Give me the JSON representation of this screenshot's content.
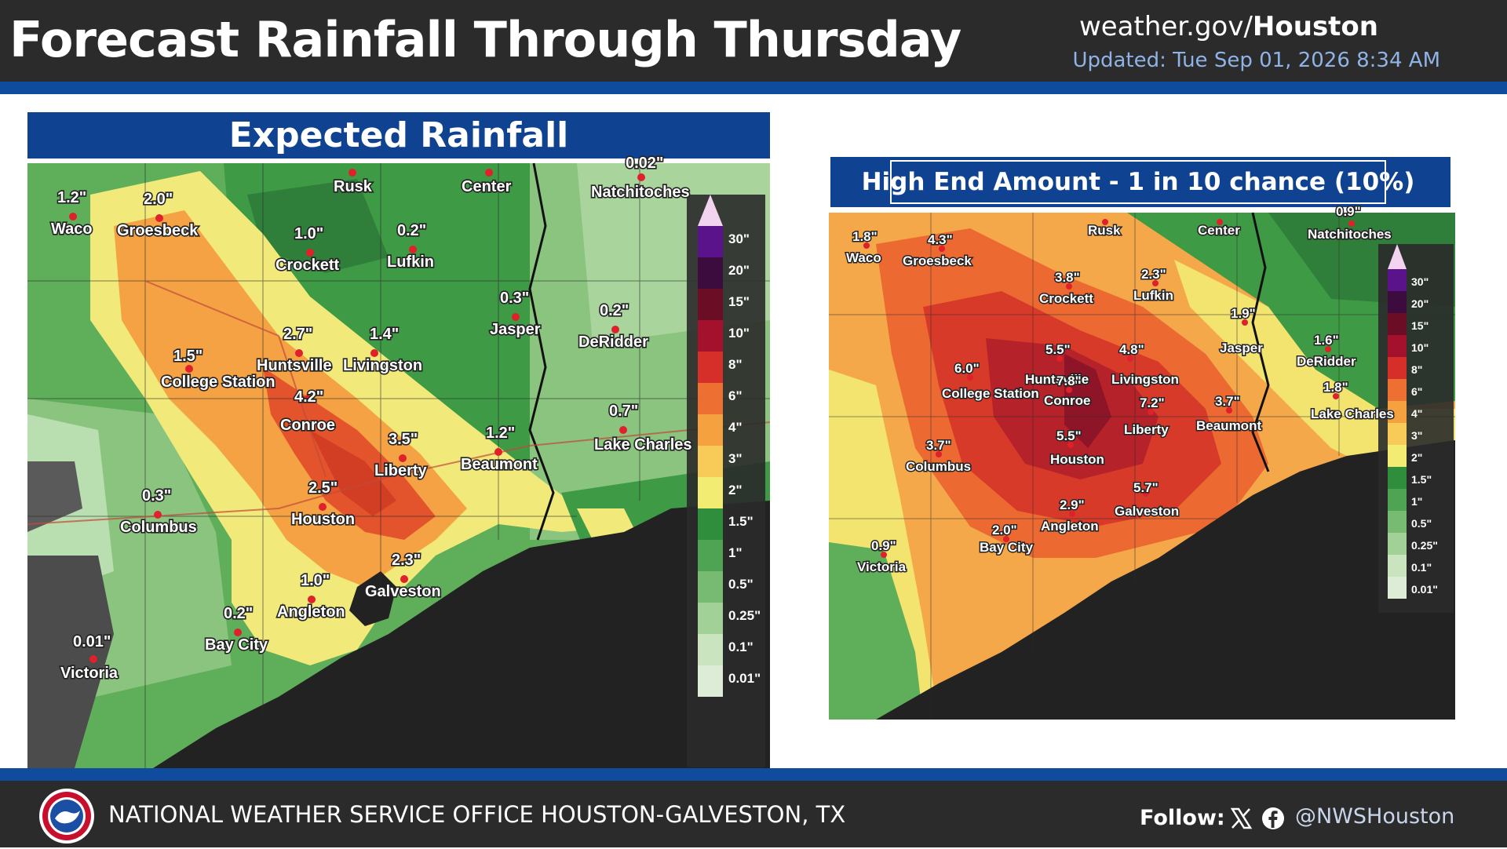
{
  "header": {
    "title": "Forecast Rainfall Through Thursday",
    "site_prefix": "weather.gov/",
    "site_office": "Houston",
    "updated": "Updated: Tue Sep 01, 2026 8:34 AM"
  },
  "left_panel": {
    "title": "Expected Rainfall",
    "legend": [
      "30\"",
      "20\"",
      "15\"",
      "10\"",
      "8\"",
      "6\"",
      "4\"",
      "3\"",
      "2\"",
      "1.5\"",
      "1\"",
      "0.5\"",
      "0.25\"",
      "0.1\"",
      "0.01\""
    ],
    "cities": [
      {
        "name": "Waco",
        "amount": "1.2\""
      },
      {
        "name": "Groesbeck",
        "amount": "2.0\""
      },
      {
        "name": "Rusk",
        "amount": ""
      },
      {
        "name": "Center",
        "amount": ""
      },
      {
        "name": "Natchitoches",
        "amount": "0.02\""
      },
      {
        "name": "Crockett",
        "amount": "1.0\""
      },
      {
        "name": "Lufkin",
        "amount": "0.2\""
      },
      {
        "name": "Jasper",
        "amount": "0.3\""
      },
      {
        "name": "DeRidder",
        "amount": "0.2\""
      },
      {
        "name": "Huntsville",
        "amount": "2.7\""
      },
      {
        "name": "Livingston",
        "amount": "1.4\""
      },
      {
        "name": "College Station",
        "amount": "1.5\""
      },
      {
        "name": "Conroe",
        "amount": "4.2\""
      },
      {
        "name": "Liberty",
        "amount": "3.5\""
      },
      {
        "name": "Beaumont",
        "amount": "1.2\""
      },
      {
        "name": "Lake Charles",
        "amount": "0.7\""
      },
      {
        "name": "Houston",
        "amount": "2.5\""
      },
      {
        "name": "Columbus",
        "amount": "0.3\""
      },
      {
        "name": "Galveston",
        "amount": "2.3\""
      },
      {
        "name": "Angleton",
        "amount": "1.0\""
      },
      {
        "name": "Bay City",
        "amount": "0.2\""
      },
      {
        "name": "Victoria",
        "amount": "0.01\""
      }
    ]
  },
  "right_panel": {
    "title": "High End Amount - 1 in 10 chance (10%)",
    "legend": [
      "30\"",
      "20\"",
      "15\"",
      "10\"",
      "8\"",
      "6\"",
      "4\"",
      "3\"",
      "2\"",
      "1.5\"",
      "1\"",
      "0.5\"",
      "0.25\"",
      "0.1\"",
      "0.01\""
    ],
    "cities": [
      {
        "name": "Waco",
        "amount": "1.8\""
      },
      {
        "name": "Groesbeck",
        "amount": "4.3\""
      },
      {
        "name": "Rusk",
        "amount": ""
      },
      {
        "name": "Center",
        "amount": ""
      },
      {
        "name": "Natchitoches",
        "amount": "0.9\""
      },
      {
        "name": "Crockett",
        "amount": "3.8\""
      },
      {
        "name": "Lufkin",
        "amount": "2.3\""
      },
      {
        "name": "Jasper",
        "amount": "1.9\""
      },
      {
        "name": "DeRidder",
        "amount": "1.6\""
      },
      {
        "name": "Huntsville",
        "amount": "5.5\""
      },
      {
        "name": "Livingston",
        "amount": "4.8\""
      },
      {
        "name": "College Station",
        "amount": "6.0\""
      },
      {
        "name": "Conroe",
        "amount": "7.8\""
      },
      {
        "name": "Liberty",
        "amount": "7.2\""
      },
      {
        "name": "Beaumont",
        "amount": "3.7\""
      },
      {
        "name": "Lake Charles",
        "amount": "1.8\""
      },
      {
        "name": "Houston",
        "amount": "5.5\""
      },
      {
        "name": "Columbus",
        "amount": "3.7\""
      },
      {
        "name": "Galveston",
        "amount": "5.7\""
      },
      {
        "name": "Angleton",
        "amount": "2.9\""
      },
      {
        "name": "Bay City",
        "amount": "2.0\""
      },
      {
        "name": "Victoria",
        "amount": "0.9\""
      }
    ]
  },
  "footer": {
    "office": "NATIONAL WEATHER SERVICE OFFICE HOUSTON-GALVESTON, TX",
    "follow": "Follow:",
    "handle": "@NWSHouston"
  },
  "colors": {
    "header_bg": "#2b2b2b",
    "band_blue": "#0f4c9e",
    "title_blue": "#0f4392",
    "updated_text": "#8fb3e6"
  }
}
